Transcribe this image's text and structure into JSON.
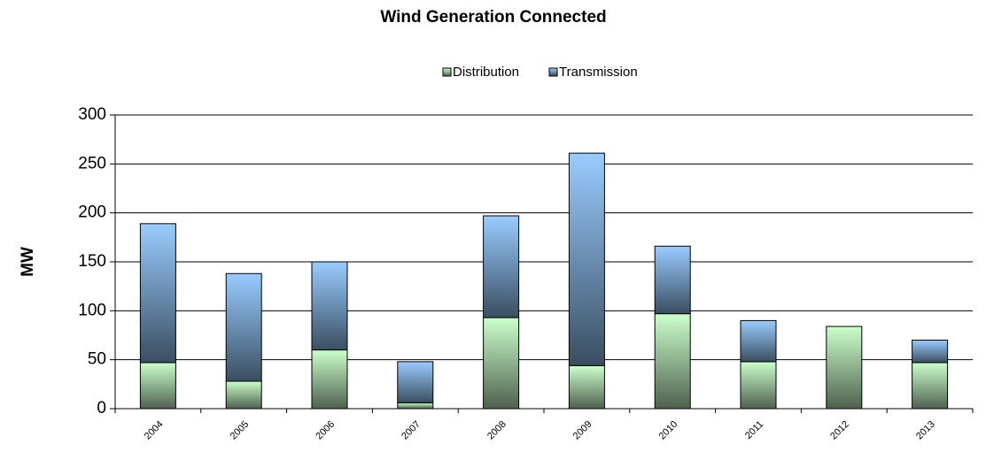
{
  "chart_data": {
    "type": "bar",
    "stacked": true,
    "title": "Wind Generation Connected",
    "y_label": "MW",
    "categories": [
      "2004",
      "2005",
      "2006",
      "2007",
      "2008",
      "2009",
      "2010",
      "2011",
      "2012",
      "2013"
    ],
    "series": [
      {
        "name": "Distribution",
        "color": "#ccffcc",
        "values": [
          47,
          28,
          60,
          6,
          93,
          44,
          97,
          48,
          84,
          47
        ]
      },
      {
        "name": "Transmission",
        "color": "#99ccff",
        "values": [
          142,
          110,
          90,
          42,
          104,
          217,
          69,
          42,
          0,
          23
        ]
      }
    ],
    "ylim": [
      0,
      300
    ],
    "yticks": [
      0,
      50,
      100,
      150,
      200,
      250,
      300
    ],
    "grid": true,
    "legend": "top"
  }
}
